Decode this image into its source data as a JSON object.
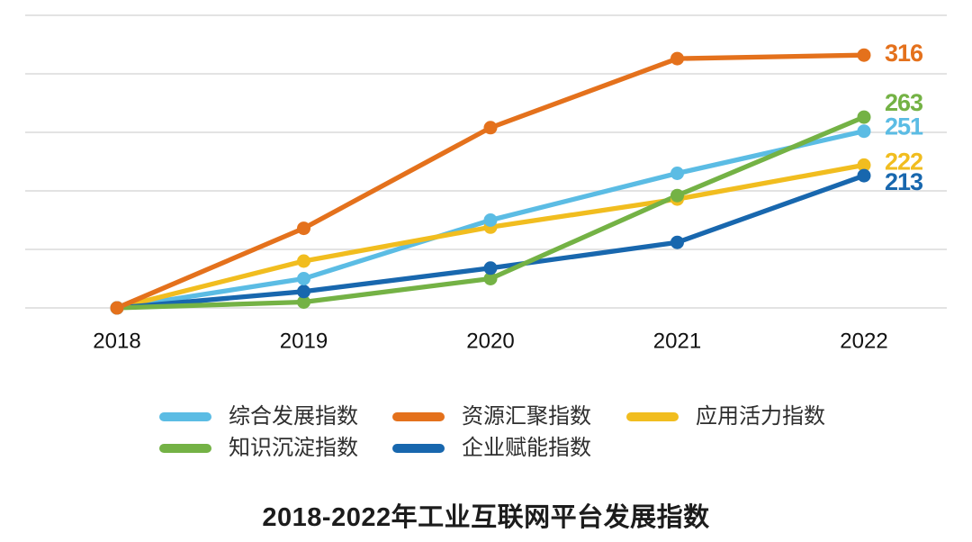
{
  "chart_data": {
    "type": "line",
    "title": "2018-2022年工业互联网平台发展指数",
    "x_labels": [
      "2018",
      "2019",
      "2020",
      "2021",
      "2022"
    ],
    "ylim": [
      100,
      350
    ],
    "gridline_values": [
      100,
      150,
      200,
      250,
      300,
      350
    ],
    "grid": "horizontal-only",
    "legend_position": "bottom",
    "series": [
      {
        "name": "综合发展指数",
        "color": "#5BBCE4",
        "values": [
          100,
          125,
          175,
          215,
          251
        ],
        "end_label": "251"
      },
      {
        "name": "资源汇聚指数",
        "color": "#E4711C",
        "values": [
          100,
          168,
          254,
          313,
          316
        ],
        "end_label": "316"
      },
      {
        "name": "应用活力指数",
        "color": "#F1BD1F",
        "values": [
          100,
          140,
          169,
          193,
          222
        ],
        "end_label": "222"
      },
      {
        "name": "知识沉淀指数",
        "color": "#74B245",
        "values": [
          100,
          105,
          125,
          196,
          263
        ],
        "end_label": "263"
      },
      {
        "name": "企业赋能指数",
        "color": "#1867AE",
        "values": [
          100,
          114,
          134,
          156,
          213
        ],
        "end_label": "213"
      }
    ],
    "axis_text_color": "#111111",
    "gridline_color": "#e3e3e3"
  }
}
